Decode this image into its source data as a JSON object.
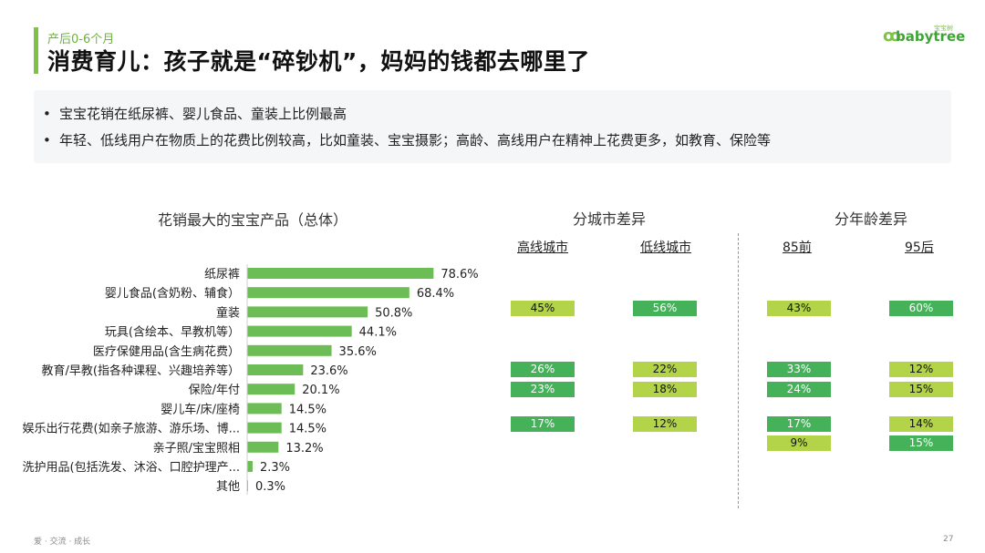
{
  "header": {
    "subtitle": "产后0-6个月",
    "title": "消费育儿：孩子就是“碎钞机”，妈妈的钱都去哪里了",
    "logo_text": "babytree",
    "logo_cn": "宝宝树",
    "accent_color": "#7ec444"
  },
  "summary": {
    "points": [
      "宝宝花销在纸尿裤、婴儿食品、童装上比例最高",
      "年轻、低线用户在物质上的花费比例较高，比如童装、宝宝摄影；高龄、高线用户在精神上花费更多，如教育、保险等"
    ]
  },
  "sections": {
    "overall_title": "花销最大的宝宝产品（总体）",
    "city_title": "分城市差异",
    "age_title": "分年龄差异"
  },
  "groups": {
    "high_city": "高线城市",
    "low_city": "低线城市",
    "age85": "85前",
    "age95": "95后"
  },
  "chart_data": {
    "type": "bar",
    "orientation": "horizontal",
    "title": "花销最大的宝宝产品（总体）",
    "categories": [
      "纸尿裤",
      "婴儿食品(含奶粉、辅食）",
      "童装",
      "玩具(含绘本、早教机等）",
      "医疗保健用品(含生病花费）",
      "教育/早教(指各种课程、兴趣培养等）",
      "保险/年付",
      "婴儿车/床/座椅",
      "娱乐出行花费(如亲子旅游、游乐场、博...",
      "亲子照/宝宝照相",
      "洗护用品(包括洗发、沐浴、口腔护理产...",
      "其他"
    ],
    "values": [
      78.6,
      68.4,
      50.8,
      44.1,
      35.6,
      23.6,
      20.1,
      14.5,
      14.5,
      13.2,
      2.3,
      0.3
    ],
    "value_labels": [
      "78.6%",
      "68.4%",
      "50.8%",
      "44.1%",
      "35.6%",
      "23.6%",
      "20.1%",
      "14.5%",
      "14.5%",
      "13.2%",
      "2.3%",
      "0.3%"
    ],
    "bar_color": "#6cbd56",
    "xlim": [
      0,
      100
    ]
  },
  "badges": {
    "colors": {
      "dark": "#45b25a",
      "light": "#b3d449"
    },
    "high_city": [
      {
        "row": 2,
        "text": "45%",
        "tone": "light"
      },
      {
        "row": 5,
        "text": "26%",
        "tone": "dark"
      },
      {
        "row": 6,
        "text": "23%",
        "tone": "dark"
      },
      {
        "row": 8,
        "text": "17%",
        "tone": "dark"
      }
    ],
    "low_city": [
      {
        "row": 2,
        "text": "56%",
        "tone": "dark"
      },
      {
        "row": 5,
        "text": "22%",
        "tone": "light"
      },
      {
        "row": 6,
        "text": "18%",
        "tone": "light"
      },
      {
        "row": 8,
        "text": "12%",
        "tone": "light"
      }
    ],
    "age85": [
      {
        "row": 2,
        "text": "43%",
        "tone": "light"
      },
      {
        "row": 5,
        "text": "33%",
        "tone": "dark"
      },
      {
        "row": 6,
        "text": "24%",
        "tone": "dark"
      },
      {
        "row": 8,
        "text": "17%",
        "tone": "dark"
      },
      {
        "row": 9,
        "text": "9%",
        "tone": "light"
      }
    ],
    "age95": [
      {
        "row": 2,
        "text": "60%",
        "tone": "dark"
      },
      {
        "row": 5,
        "text": "12%",
        "tone": "light"
      },
      {
        "row": 6,
        "text": "15%",
        "tone": "light"
      },
      {
        "row": 8,
        "text": "14%",
        "tone": "light"
      },
      {
        "row": 9,
        "text": "15%",
        "tone": "dark"
      }
    ]
  },
  "footer": {
    "left": "爱 · 交流 · 成长",
    "page": "27"
  }
}
